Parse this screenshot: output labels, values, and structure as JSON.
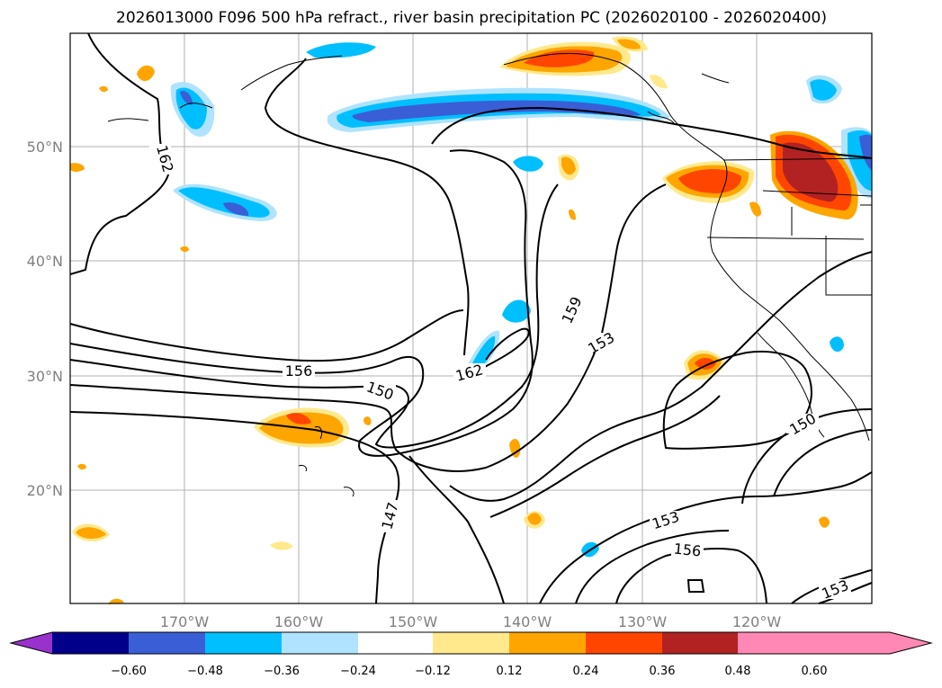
{
  "title": "2026013000 F096 500 hPa refract., river basin precipitation PC (2026020100 - 2026020400)",
  "axes": {
    "lon_labels": [
      "170°W",
      "160°W",
      "150°W",
      "140°W",
      "130°W",
      "120°W"
    ],
    "lat_labels": [
      "50°N",
      "40°N",
      "30°N",
      "20°N"
    ]
  },
  "contour_labels": [
    {
      "text": "162",
      "id": "contour-label-162-north"
    },
    {
      "text": "156",
      "id": "contour-label-156-west"
    },
    {
      "text": "150",
      "id": "contour-label-150-west"
    },
    {
      "text": "162",
      "id": "contour-label-162-central"
    },
    {
      "text": "159",
      "id": "contour-label-159"
    },
    {
      "text": "153",
      "id": "contour-label-153-central"
    },
    {
      "text": "150",
      "id": "contour-label-150-east"
    },
    {
      "text": "147",
      "id": "contour-label-147"
    },
    {
      "text": "153",
      "id": "contour-label-153-south"
    },
    {
      "text": "156",
      "id": "contour-label-156-south"
    },
    {
      "text": "153",
      "id": "contour-label-153-southeast"
    }
  ],
  "colorbar": {
    "ticks": [
      "−0.60",
      "−0.48",
      "−0.36",
      "−0.24",
      "−0.12",
      "0.12",
      "0.24",
      "0.36",
      "0.48",
      "0.60"
    ],
    "colors": [
      "#9932cc",
      "#00008b",
      "#3a5ed6",
      "#00bfff",
      "#afe3ff",
      "#ffffff",
      "#ffe98c",
      "#ffa500",
      "#ff4500",
      "#b22222",
      "#ff88b4"
    ]
  }
}
